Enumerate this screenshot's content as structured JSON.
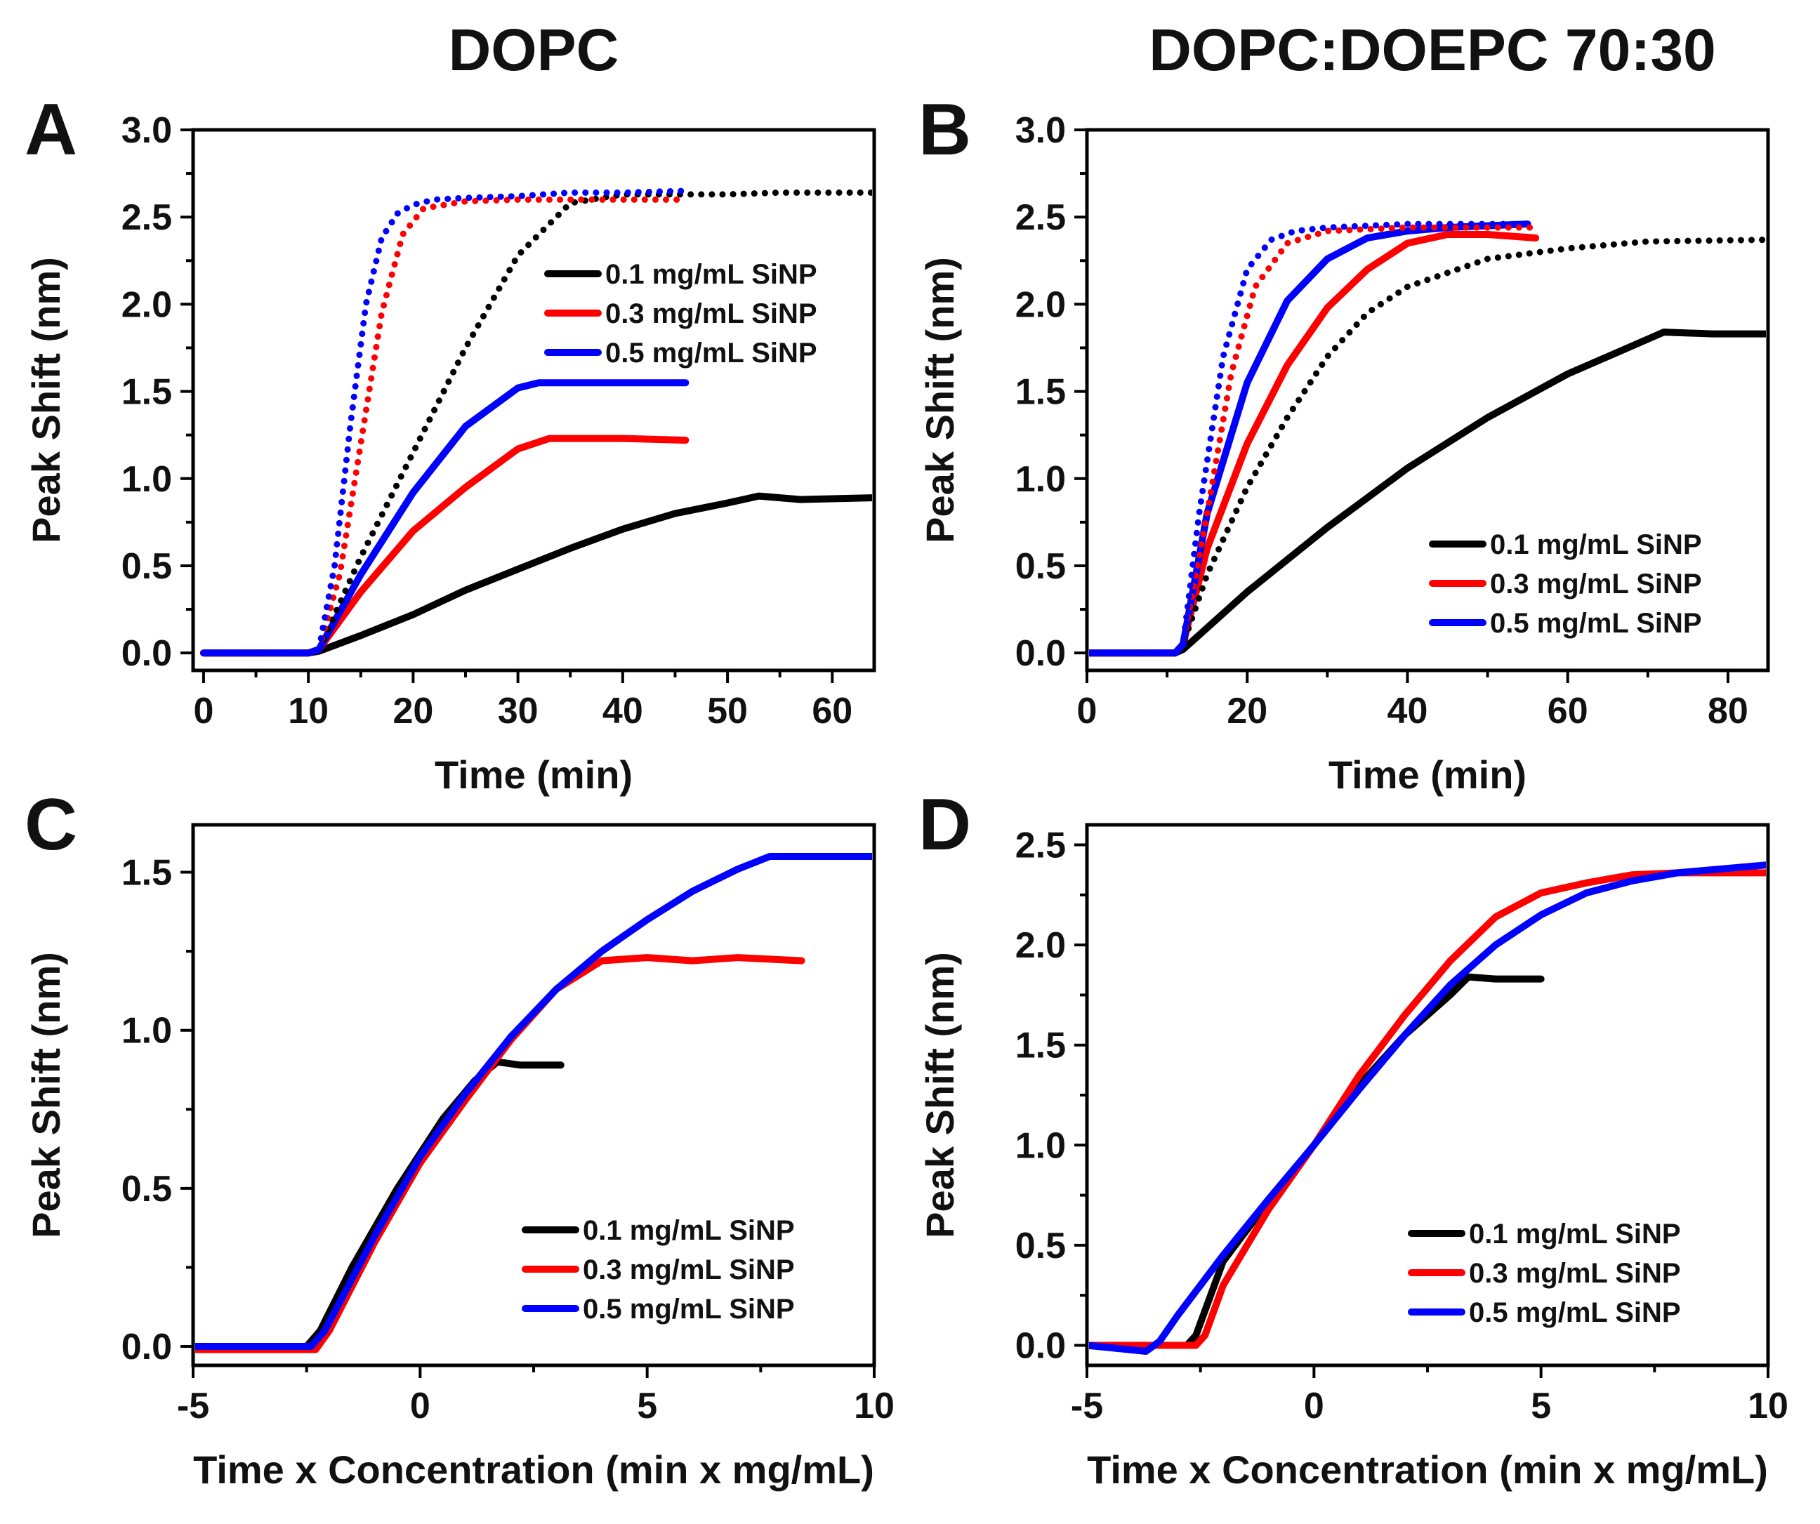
{
  "figure": {
    "column_titles": [
      "DOPC",
      "DOPC:DOEPC 70:30"
    ],
    "colors": {
      "0.1": "#000000",
      "0.3": "#ff0000",
      "0.5": "#0000ff"
    }
  },
  "chart_data": [
    {
      "id": "A",
      "type": "line",
      "panel_letter": "A",
      "title": "DOPC",
      "xlabel": "Time (min)",
      "ylabel": "Peak Shift (nm)",
      "xlim": [
        -1,
        64
      ],
      "ylim": [
        -0.1,
        3.0
      ],
      "xticks": [
        0,
        10,
        20,
        30,
        40,
        50,
        60
      ],
      "yticks": [
        0.0,
        0.5,
        1.0,
        1.5,
        2.0,
        2.5,
        3.0
      ],
      "ytick_labels": [
        "0.0",
        "0.5",
        "1.0",
        "1.5",
        "2.0",
        "2.5",
        "3.0"
      ],
      "legend": {
        "position": "right-middle",
        "entries": [
          "0.1 mg/mL SiNP",
          "0.3 mg/mL SiNP",
          "0.5 mg/mL SiNP"
        ]
      },
      "series": [
        {
          "name": "0.1 mg/mL SiNP",
          "color": "#000000",
          "style": "solid",
          "x": [
            0,
            10,
            11,
            15,
            20,
            25,
            30,
            35,
            40,
            45,
            50,
            53,
            57,
            64
          ],
          "y": [
            0.0,
            0.0,
            0.01,
            0.1,
            0.22,
            0.36,
            0.48,
            0.6,
            0.71,
            0.8,
            0.86,
            0.9,
            0.88,
            0.89
          ]
        },
        {
          "name": "0.3 mg/mL SiNP",
          "color": "#ff0000",
          "style": "solid",
          "x": [
            0,
            10,
            11,
            15,
            20,
            25,
            30,
            33,
            40,
            46
          ],
          "y": [
            0.0,
            0.0,
            0.02,
            0.35,
            0.7,
            0.95,
            1.17,
            1.23,
            1.23,
            1.22
          ]
        },
        {
          "name": "0.5 mg/mL SiNP",
          "color": "#0000ff",
          "style": "solid",
          "x": [
            0,
            10,
            11,
            15,
            20,
            25,
            30,
            32,
            40,
            46
          ],
          "y": [
            0.0,
            0.0,
            0.02,
            0.45,
            0.92,
            1.3,
            1.52,
            1.55,
            1.55,
            1.55
          ]
        },
        {
          "name": "0.1 mg/mL SiNP (dotted)",
          "color": "#000000",
          "style": "dotted",
          "x": [
            0,
            10,
            11,
            15,
            20,
            25,
            30,
            35,
            40,
            45,
            50,
            55,
            64
          ],
          "y": [
            0.0,
            0.0,
            0.02,
            0.55,
            1.15,
            1.75,
            2.28,
            2.58,
            2.63,
            2.63,
            2.63,
            2.64,
            2.64
          ]
        },
        {
          "name": "0.3 mg/mL SiNP (dotted)",
          "color": "#ff0000",
          "style": "dotted",
          "x": [
            0,
            10,
            11,
            13,
            15,
            17,
            19,
            21,
            25,
            30,
            40,
            46
          ],
          "y": [
            0.0,
            0.0,
            0.02,
            0.45,
            1.2,
            1.95,
            2.4,
            2.55,
            2.59,
            2.6,
            2.6,
            2.6
          ]
        },
        {
          "name": "0.5 mg/mL SiNP (dotted)",
          "color": "#0000ff",
          "style": "dotted",
          "x": [
            0,
            10,
            11,
            12.5,
            14,
            15.5,
            17,
            18.5,
            20,
            22,
            25,
            30,
            35,
            40,
            46
          ],
          "y": [
            0.0,
            0.0,
            0.02,
            0.5,
            1.3,
            2.0,
            2.38,
            2.52,
            2.57,
            2.6,
            2.61,
            2.62,
            2.64,
            2.64,
            2.65
          ]
        }
      ]
    },
    {
      "id": "B",
      "type": "line",
      "panel_letter": "B",
      "title": "DOPC:DOEPC 70:30",
      "xlabel": "Time (min)",
      "ylabel": "Peak Shift (nm)",
      "xlim": [
        0,
        85
      ],
      "ylim": [
        -0.1,
        3.0
      ],
      "xticks": [
        0,
        20,
        40,
        60,
        80
      ],
      "yticks": [
        0.0,
        0.5,
        1.0,
        1.5,
        2.0,
        2.5,
        3.0
      ],
      "ytick_labels": [
        "0.0",
        "0.5",
        "1.0",
        "1.5",
        "2.0",
        "2.5",
        "3.0"
      ],
      "legend": {
        "position": "bottom-right",
        "entries": [
          "0.1 mg/mL SiNP",
          "0.3 mg/mL SiNP",
          "0.5 mg/mL SiNP"
        ]
      },
      "series": [
        {
          "name": "0.1 mg/mL SiNP",
          "color": "#000000",
          "style": "solid",
          "x": [
            0,
            11,
            12,
            20,
            30,
            40,
            50,
            60,
            70,
            72,
            78,
            85
          ],
          "y": [
            0.0,
            0.0,
            0.02,
            0.35,
            0.72,
            1.06,
            1.35,
            1.6,
            1.8,
            1.84,
            1.83,
            1.83
          ]
        },
        {
          "name": "0.3 mg/mL SiNP",
          "color": "#ff0000",
          "style": "solid",
          "x": [
            0,
            11,
            12,
            15,
            20,
            25,
            30,
            35,
            40,
            45,
            50,
            56
          ],
          "y": [
            0.0,
            0.0,
            0.05,
            0.6,
            1.2,
            1.65,
            1.98,
            2.2,
            2.35,
            2.4,
            2.4,
            2.38
          ]
        },
        {
          "name": "0.5 mg/mL SiNP",
          "color": "#0000ff",
          "style": "solid",
          "x": [
            0,
            11,
            12,
            15,
            20,
            25,
            30,
            35,
            40,
            45,
            50,
            55
          ],
          "y": [
            0.0,
            0.0,
            0.05,
            0.8,
            1.55,
            2.02,
            2.26,
            2.38,
            2.42,
            2.44,
            2.45,
            2.46
          ]
        },
        {
          "name": "0.1 mg/mL SiNP (dotted)",
          "color": "#000000",
          "style": "dotted",
          "x": [
            0,
            11,
            12,
            15,
            20,
            25,
            30,
            35,
            40,
            50,
            60,
            70,
            85
          ],
          "y": [
            0.0,
            0.0,
            0.05,
            0.45,
            0.95,
            1.35,
            1.7,
            1.95,
            2.1,
            2.26,
            2.32,
            2.36,
            2.37
          ]
        },
        {
          "name": "0.3 mg/mL SiNP (dotted)",
          "color": "#ff0000",
          "style": "dotted",
          "x": [
            0,
            11,
            12,
            15,
            18,
            21,
            25,
            30,
            40,
            50,
            56
          ],
          "y": [
            0.0,
            0.0,
            0.05,
            0.8,
            1.6,
            2.1,
            2.35,
            2.42,
            2.44,
            2.44,
            2.44
          ]
        },
        {
          "name": "0.5 mg/mL SiNP (dotted)",
          "color": "#0000ff",
          "style": "dotted",
          "x": [
            0,
            11,
            12,
            14,
            17,
            20,
            23,
            26,
            30,
            40,
            50,
            55
          ],
          "y": [
            0.0,
            0.0,
            0.05,
            0.8,
            1.7,
            2.2,
            2.37,
            2.42,
            2.44,
            2.46,
            2.46,
            2.46
          ]
        }
      ]
    },
    {
      "id": "C",
      "type": "line",
      "panel_letter": "C",
      "xlabel": "Time x Concentration (min x mg/mL)",
      "ylabel": "Peak Shift (nm)",
      "xlim": [
        -5,
        10
      ],
      "ylim": [
        -0.06,
        1.65
      ],
      "xticks": [
        -5,
        0,
        5,
        10
      ],
      "yticks": [
        0.0,
        0.5,
        1.0,
        1.5
      ],
      "ytick_labels": [
        "0.0",
        "0.5",
        "1.0",
        "1.5"
      ],
      "legend": {
        "position": "bottom-right",
        "entries": [
          "0.1 mg/mL SiNP",
          "0.3 mg/mL SiNP",
          "0.5 mg/mL SiNP"
        ]
      },
      "series": [
        {
          "name": "0.1 mg/mL SiNP",
          "color": "#000000",
          "style": "solid",
          "x": [
            -5,
            -2.5,
            -2.2,
            -1.5,
            -0.5,
            0.5,
            1.2,
            1.7,
            2.2,
            3.1
          ],
          "y": [
            0.0,
            0.0,
            0.05,
            0.25,
            0.5,
            0.72,
            0.84,
            0.9,
            0.89,
            0.89
          ]
        },
        {
          "name": "0.3 mg/mL SiNP",
          "color": "#ff0000",
          "style": "solid",
          "x": [
            -5,
            -2.3,
            -2.0,
            -1.0,
            0,
            1,
            2,
            3,
            4,
            5,
            6,
            7,
            8.4
          ],
          "y": [
            -0.01,
            -0.01,
            0.05,
            0.33,
            0.58,
            0.78,
            0.97,
            1.13,
            1.22,
            1.23,
            1.22,
            1.23,
            1.22
          ]
        },
        {
          "name": "0.5 mg/mL SiNP",
          "color": "#0000ff",
          "style": "solid",
          "x": [
            -5,
            -2.4,
            -2.1,
            -1,
            0,
            1,
            2,
            3,
            4,
            5,
            6,
            7,
            7.7,
            8.5,
            10
          ],
          "y": [
            0.0,
            0.0,
            0.05,
            0.35,
            0.6,
            0.8,
            0.98,
            1.13,
            1.25,
            1.35,
            1.44,
            1.51,
            1.55,
            1.55,
            1.55
          ]
        }
      ]
    },
    {
      "id": "D",
      "type": "line",
      "panel_letter": "D",
      "xlabel": "Time x Concentration (min x mg/mL)",
      "ylabel": "Peak Shift (nm)",
      "xlim": [
        -5,
        10
      ],
      "ylim": [
        -0.1,
        2.6
      ],
      "xticks": [
        -5,
        0,
        5,
        10
      ],
      "yticks": [
        0.0,
        0.5,
        1.0,
        1.5,
        2.0,
        2.5
      ],
      "ytick_labels": [
        "0.0",
        "0.5",
        "1.0",
        "1.5",
        "2.0",
        "2.5"
      ],
      "legend": {
        "position": "bottom-right",
        "entries": [
          "0.1 mg/mL SiNP",
          "0.3 mg/mL SiNP",
          "0.5 mg/mL SiNP"
        ]
      },
      "series": [
        {
          "name": "0.1 mg/mL SiNP",
          "color": "#000000",
          "style": "solid",
          "x": [
            -5,
            -2.8,
            -2.6,
            -2,
            -1,
            0,
            1,
            2,
            3,
            3.4,
            4,
            5
          ],
          "y": [
            0.0,
            0.0,
            0.05,
            0.42,
            0.72,
            1.0,
            1.3,
            1.55,
            1.75,
            1.84,
            1.83,
            1.83
          ]
        },
        {
          "name": "0.3 mg/mL SiNP",
          "color": "#ff0000",
          "style": "solid",
          "x": [
            -5,
            -2.6,
            -2.4,
            -2,
            -1,
            0,
            1,
            2,
            3,
            4,
            5,
            6,
            7,
            8,
            10
          ],
          "y": [
            0.0,
            0.0,
            0.05,
            0.3,
            0.68,
            1.0,
            1.35,
            1.65,
            1.92,
            2.14,
            2.26,
            2.31,
            2.35,
            2.36,
            2.36
          ]
        },
        {
          "name": "0.5 mg/mL SiNP",
          "color": "#0000ff",
          "style": "solid",
          "x": [
            -5,
            -3.7,
            -3.4,
            -3,
            -2,
            -1,
            0,
            1,
            2,
            3,
            4,
            5,
            6,
            7,
            8,
            10
          ],
          "y": [
            0.0,
            -0.03,
            0.02,
            0.15,
            0.45,
            0.73,
            1.0,
            1.28,
            1.55,
            1.8,
            2.0,
            2.15,
            2.26,
            2.32,
            2.36,
            2.4
          ]
        }
      ]
    }
  ]
}
